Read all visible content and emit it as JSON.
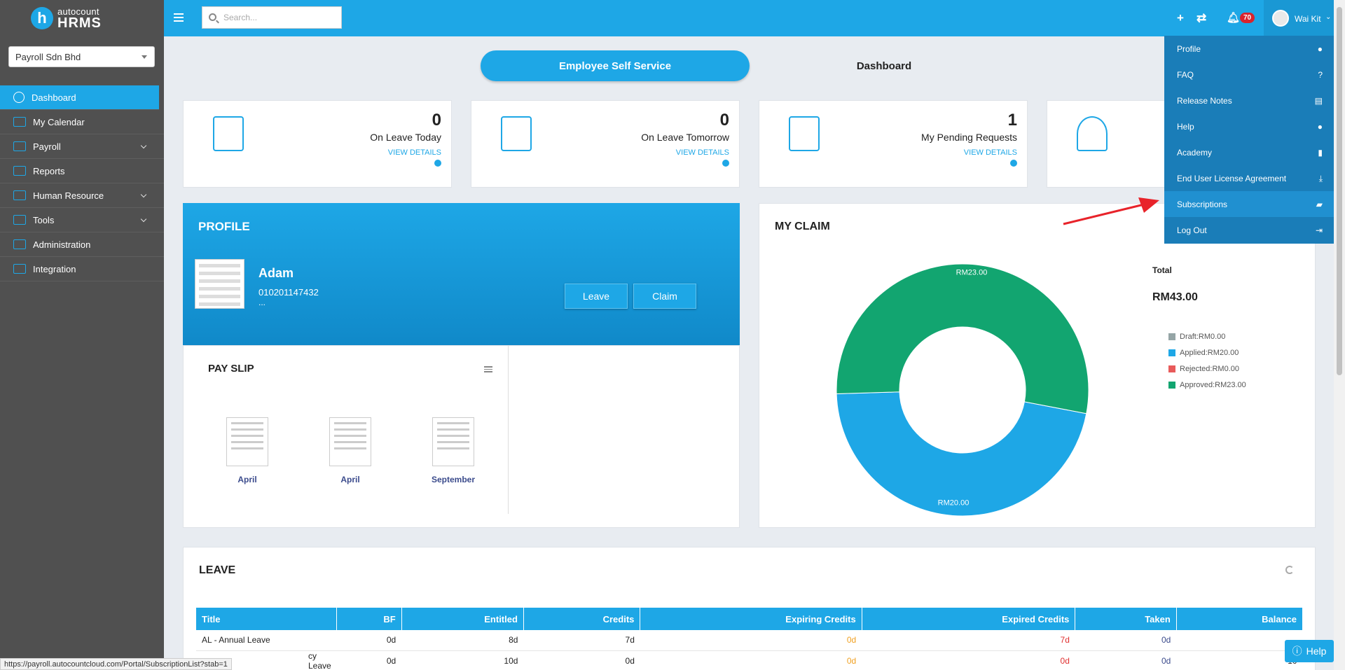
{
  "brand": {
    "logo_letter": "h",
    "line1": "autocount",
    "line2": "HRMS"
  },
  "company": {
    "selected": "Payroll Sdn Bhd"
  },
  "sidebar": {
    "items": [
      {
        "label": "Dashboard",
        "active": true
      },
      {
        "label": "My Calendar"
      },
      {
        "label": "Payroll",
        "expandable": true
      },
      {
        "label": "Reports"
      },
      {
        "label": "Human Resource",
        "expandable": true
      },
      {
        "label": "Tools",
        "expandable": true
      },
      {
        "label": "Administration"
      },
      {
        "label": "Integration"
      }
    ]
  },
  "topbar": {
    "search_placeholder": "Search...",
    "notification_count": "70",
    "user_name": "Wai Kit"
  },
  "tabs": {
    "ess": "Employee Self Service",
    "dashboard": "Dashboard"
  },
  "stats": [
    {
      "value": "0",
      "label": "On Leave Today",
      "link": "VIEW DETAILS"
    },
    {
      "value": "0",
      "label": "On Leave Tomorrow",
      "link": "VIEW DETAILS"
    },
    {
      "value": "1",
      "label": "My Pending Requests",
      "link": "VIEW DETAILS"
    }
  ],
  "profile": {
    "title": "PROFILE",
    "name": "Adam",
    "ic": "010201147432",
    "extra": "...",
    "leave_btn": "Leave",
    "claim_btn": "Claim"
  },
  "payslip": {
    "title": "PAY SLIP",
    "items": [
      "April",
      "April",
      "September"
    ]
  },
  "claim": {
    "title": "MY CLAIM",
    "total_label": "Total",
    "total_value": "RM43.00",
    "legend": [
      {
        "label": "Draft:RM0.00",
        "color": "#95a5a6"
      },
      {
        "label": "Applied:RM20.00",
        "color": "#1ea7e6"
      },
      {
        "label": "Rejected:RM0.00",
        "color": "#e85a5a"
      },
      {
        "label": "Approved:RM23.00",
        "color": "#12a570"
      }
    ]
  },
  "chart_data": {
    "type": "pie",
    "categories": [
      "Draft",
      "Applied",
      "Rejected",
      "Approved"
    ],
    "values": [
      0,
      20,
      0,
      23
    ],
    "data_labels": [
      "",
      "RM20.00",
      "",
      "RM23.00"
    ],
    "colors": [
      "#95a5a6",
      "#1ea7e6",
      "#e85a5a",
      "#12a570"
    ],
    "donut": true
  },
  "leave": {
    "title": "LEAVE",
    "columns": [
      "Title",
      "BF",
      "Entitled",
      "Credits",
      "Expiring Credits",
      "Expired Credits",
      "Taken",
      "Balance"
    ],
    "rows": [
      [
        "AL - Annual Leave",
        "0d",
        "8d",
        "7d",
        "0d",
        "7d",
        "0d",
        ""
      ],
      [
        "cy Leave",
        "0d",
        "10d",
        "0d",
        "0d",
        "0d",
        "0d",
        "10"
      ]
    ]
  },
  "dropdown": {
    "items": [
      {
        "label": "Profile",
        "icon": "user-circle-icon",
        "glyph": "●"
      },
      {
        "label": "FAQ",
        "icon": "question-icon",
        "glyph": "?"
      },
      {
        "label": "Release Notes",
        "icon": "newspaper-icon",
        "glyph": "▤"
      },
      {
        "label": "Help",
        "icon": "question-circle-icon",
        "glyph": "●"
      },
      {
        "label": "Academy",
        "icon": "bookmark-icon",
        "glyph": "▮"
      },
      {
        "label": "End User License Agreement",
        "icon": "download-icon",
        "glyph": "⤓"
      },
      {
        "label": "Subscriptions",
        "icon": "book-icon",
        "glyph": "▰",
        "highlighted": true
      },
      {
        "label": "Log Out",
        "icon": "sign-out-icon",
        "glyph": "⇥"
      }
    ]
  },
  "help_button": "Help",
  "status_url": "https://payroll.autocountcloud.com/Portal/SubscriptionList?stab=1"
}
